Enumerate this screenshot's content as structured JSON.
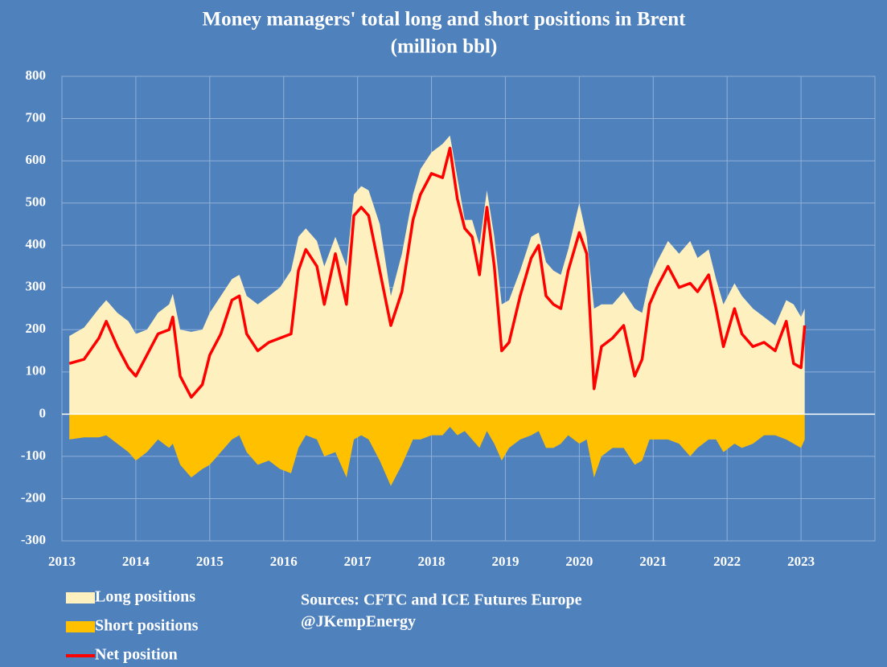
{
  "chart_data": {
    "type": "area",
    "title": "Money managers' total long and short positions in Brent",
    "subtitle": "(million bbl)",
    "x": [
      2013.1,
      2013.3,
      2013.5,
      2013.6,
      2013.75,
      2013.9,
      2014.0,
      2014.15,
      2014.3,
      2014.45,
      2014.5,
      2014.6,
      2014.75,
      2014.9,
      2015.0,
      2015.15,
      2015.3,
      2015.4,
      2015.5,
      2015.65,
      2015.8,
      2015.95,
      2016.1,
      2016.2,
      2016.3,
      2016.45,
      2016.55,
      2016.7,
      2016.85,
      2016.95,
      2017.05,
      2017.15,
      2017.3,
      2017.45,
      2017.6,
      2017.75,
      2017.85,
      2018.0,
      2018.15,
      2018.25,
      2018.35,
      2018.45,
      2018.55,
      2018.65,
      2018.75,
      2018.85,
      2018.95,
      2019.05,
      2019.2,
      2019.35,
      2019.45,
      2019.55,
      2019.65,
      2019.75,
      2019.85,
      2020.0,
      2020.1,
      2020.2,
      2020.3,
      2020.45,
      2020.6,
      2020.75,
      2020.85,
      2020.95,
      2021.05,
      2021.2,
      2021.35,
      2021.5,
      2021.6,
      2021.75,
      2021.85,
      2021.95,
      2022.1,
      2022.2,
      2022.35,
      2022.5,
      2022.65,
      2022.8,
      2022.9,
      2023.0,
      2023.05
    ],
    "series": [
      {
        "name": "Long positions",
        "color": "#fff0c0",
        "kind": "area",
        "values": [
          185,
          205,
          250,
          270,
          240,
          220,
          190,
          200,
          240,
          260,
          285,
          200,
          195,
          200,
          240,
          280,
          320,
          330,
          280,
          260,
          280,
          300,
          340,
          420,
          440,
          410,
          350,
          420,
          350,
          520,
          540,
          530,
          450,
          280,
          380,
          520,
          580,
          620,
          640,
          660,
          560,
          460,
          460,
          400,
          530,
          420,
          260,
          270,
          340,
          420,
          430,
          360,
          340,
          330,
          390,
          500,
          420,
          250,
          260,
          260,
          290,
          250,
          240,
          320,
          360,
          410,
          380,
          410,
          370,
          390,
          320,
          260,
          310,
          280,
          250,
          230,
          210,
          270,
          260,
          230,
          250
        ]
      },
      {
        "name": "Short positions",
        "color": "#ffc000",
        "kind": "area",
        "values": [
          -60,
          -55,
          -55,
          -50,
          -70,
          -90,
          -110,
          -90,
          -60,
          -80,
          -70,
          -120,
          -150,
          -130,
          -120,
          -90,
          -60,
          -50,
          -90,
          -120,
          -110,
          -130,
          -140,
          -80,
          -50,
          -60,
          -100,
          -90,
          -150,
          -60,
          -50,
          -60,
          -110,
          -170,
          -120,
          -60,
          -60,
          -50,
          -50,
          -30,
          -50,
          -40,
          -60,
          -80,
          -40,
          -70,
          -110,
          -80,
          -60,
          -50,
          -40,
          -80,
          -80,
          -70,
          -50,
          -70,
          -60,
          -150,
          -100,
          -80,
          -80,
          -120,
          -110,
          -60,
          -60,
          -60,
          -70,
          -100,
          -80,
          -60,
          -60,
          -90,
          -70,
          -80,
          -70,
          -50,
          -50,
          -60,
          -70,
          -80,
          -60
        ]
      },
      {
        "name": "Net position",
        "color": "#ff0000",
        "kind": "line",
        "values": [
          120,
          130,
          180,
          220,
          160,
          110,
          90,
          140,
          190,
          200,
          230,
          90,
          40,
          70,
          140,
          190,
          270,
          280,
          190,
          150,
          170,
          180,
          190,
          340,
          390,
          350,
          260,
          380,
          260,
          470,
          490,
          470,
          340,
          210,
          290,
          460,
          520,
          570,
          560,
          630,
          510,
          440,
          420,
          330,
          490,
          350,
          150,
          170,
          280,
          370,
          400,
          280,
          260,
          250,
          340,
          430,
          380,
          60,
          160,
          180,
          210,
          90,
          130,
          260,
          300,
          350,
          300,
          310,
          290,
          330,
          250,
          160,
          250,
          190,
          160,
          170,
          150,
          220,
          120,
          110,
          210
        ]
      }
    ],
    "xlim": [
      2013,
      2024
    ],
    "xticks": [
      2013,
      2014,
      2015,
      2016,
      2017,
      2018,
      2019,
      2020,
      2021,
      2022,
      2023
    ],
    "ylim": [
      -300,
      800
    ],
    "yticks": [
      -300,
      -200,
      -100,
      0,
      100,
      200,
      300,
      400,
      500,
      600,
      700,
      800
    ],
    "grid": true,
    "legend": "bottom-left",
    "annotations": [
      "Sources: CFTC and ICE Futures Europe",
      "@JKempEnergy"
    ]
  }
}
